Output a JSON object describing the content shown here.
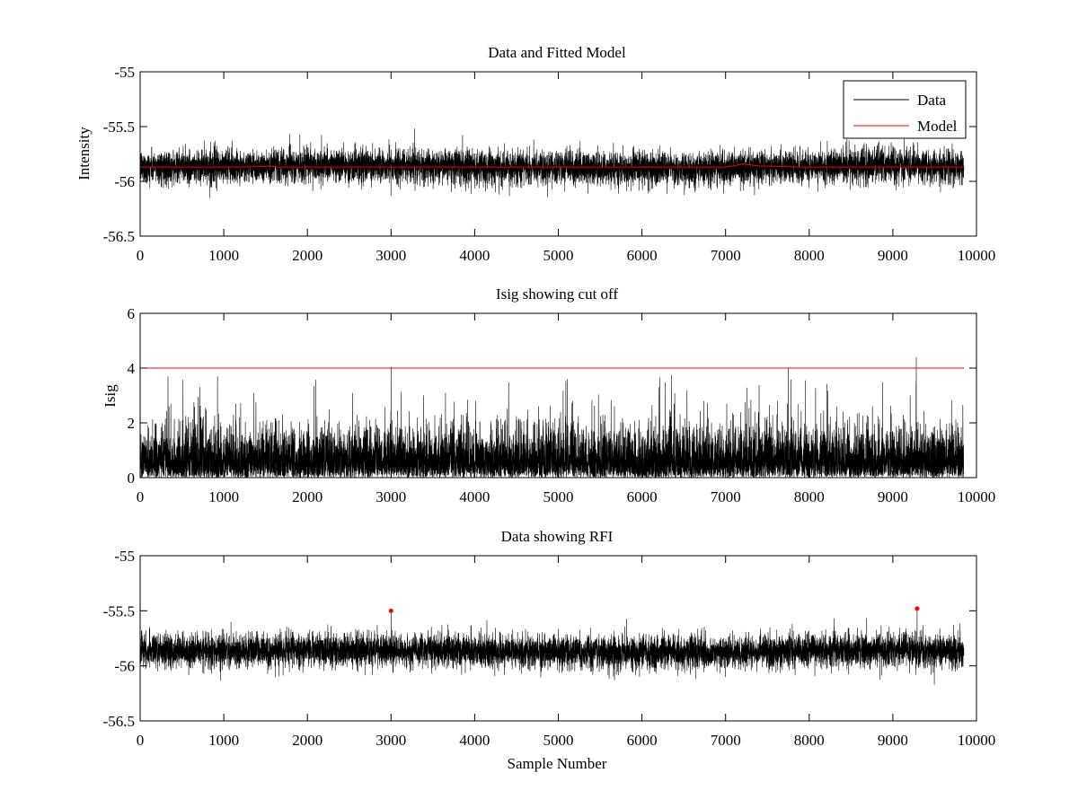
{
  "colors": {
    "data": "#000000",
    "model": "#ff0000",
    "axis": "#000000",
    "background": "#ffffff"
  },
  "chart_data": [
    {
      "type": "line",
      "title": "Data and Fitted Model",
      "xlabel": "",
      "ylabel": "Intensity",
      "xlim": [
        0,
        10000
      ],
      "ylim": [
        -56.5,
        -55
      ],
      "xticks": [
        0,
        1000,
        2000,
        3000,
        4000,
        5000,
        6000,
        7000,
        8000,
        9000,
        10000
      ],
      "xtick_labels": [
        "0",
        "1000",
        "2000",
        "3000",
        "4000",
        "5000",
        "6000",
        "7000",
        "8000",
        "9000",
        "10000"
      ],
      "yticks": [
        -55,
        -55.5,
        -56,
        -56.5
      ],
      "ytick_labels": [
        "-55",
        "-55.5",
        "-56",
        "-56.5"
      ],
      "legend": {
        "position": "top-right",
        "entries": [
          "Data",
          "Model"
        ]
      },
      "noise": {
        "n": 9850,
        "mean": -55.87,
        "std": 0.075,
        "extra_spikes": []
      },
      "series": [
        {
          "name": "Data",
          "color": "#000000",
          "kind": "noise"
        },
        {
          "name": "Model",
          "color": "#ff0000",
          "kind": "line",
          "x": [
            0,
            1200,
            1450,
            1550,
            1650,
            7000,
            7100,
            7200,
            7400,
            7700,
            7900,
            9850
          ],
          "y": [
            -55.87,
            -55.87,
            -55.865,
            -55.86,
            -55.87,
            -55.87,
            -55.86,
            -55.84,
            -55.86,
            -55.865,
            -55.87,
            -55.87
          ]
        }
      ]
    },
    {
      "type": "line",
      "title": "Isig showing cut off",
      "xlabel": "",
      "ylabel": "Isig",
      "xlim": [
        0,
        10000
      ],
      "ylim": [
        0,
        6
      ],
      "xticks": [
        0,
        1000,
        2000,
        3000,
        4000,
        5000,
        6000,
        7000,
        8000,
        9000,
        10000
      ],
      "xtick_labels": [
        "0",
        "1000",
        "2000",
        "3000",
        "4000",
        "5000",
        "6000",
        "7000",
        "8000",
        "9000",
        "10000"
      ],
      "yticks": [
        0,
        2,
        4,
        6
      ],
      "ytick_labels": [
        "0",
        "2",
        "4",
        "6"
      ],
      "series": [
        {
          "name": "Isig",
          "color": "#000000",
          "kind": "isig",
          "n": 9850,
          "spikes_x": [
            3000,
            7750,
            9280
          ],
          "spikes_y": [
            4.05,
            4.0,
            4.4
          ]
        },
        {
          "name": "Cut off",
          "color": "#ff0000",
          "kind": "line",
          "x": [
            0,
            9850
          ],
          "y": [
            4,
            4
          ]
        }
      ]
    },
    {
      "type": "line",
      "title": "Data showing RFI",
      "xlabel": "Sample Number",
      "ylabel": "",
      "xlim": [
        0,
        10000
      ],
      "ylim": [
        -56.5,
        -55
      ],
      "xticks": [
        0,
        1000,
        2000,
        3000,
        4000,
        5000,
        6000,
        7000,
        8000,
        9000,
        10000
      ],
      "xtick_labels": [
        "0",
        "1000",
        "2000",
        "3000",
        "4000",
        "5000",
        "6000",
        "7000",
        "8000",
        "9000",
        "10000"
      ],
      "yticks": [
        -55,
        -55.5,
        -56,
        -56.5
      ],
      "ytick_labels": [
        "-55",
        "-55.5",
        "-56",
        "-56.5"
      ],
      "noise": {
        "n": 9850,
        "mean": -55.87,
        "std": 0.075,
        "extra_spikes": [
          {
            "x": 3000,
            "y": -55.5
          },
          {
            "x": 9290,
            "y": -55.48
          }
        ]
      },
      "series": [
        {
          "name": "Data",
          "color": "#000000",
          "kind": "noise"
        },
        {
          "name": "RFI",
          "color": "#ff0000",
          "kind": "scatter",
          "x": [
            3000,
            9290
          ],
          "y": [
            -55.5,
            -55.48
          ]
        }
      ]
    }
  ]
}
